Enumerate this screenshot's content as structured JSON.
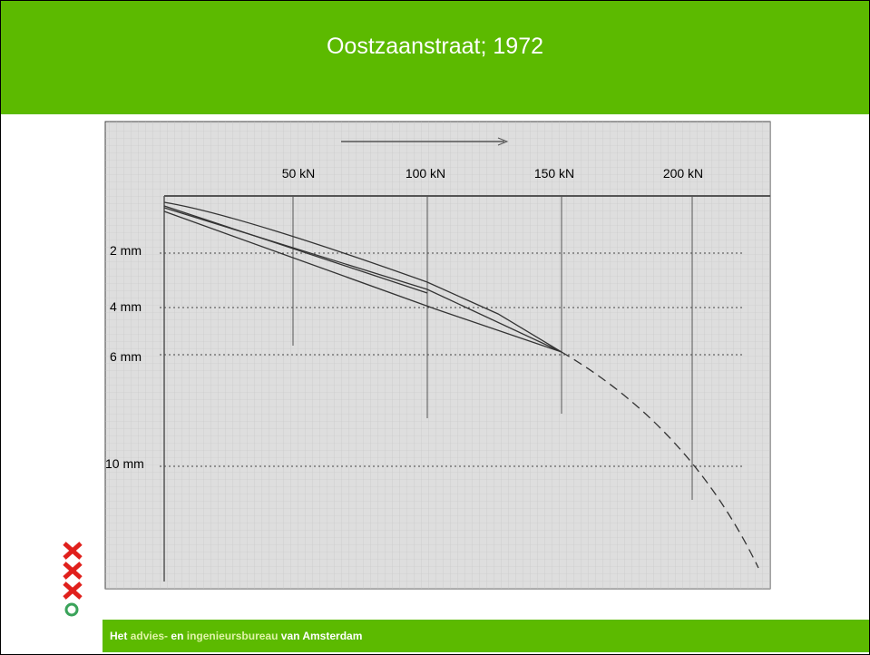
{
  "header": {
    "title": "Oostzaanstraat; 1972"
  },
  "figure": {
    "load_labels": [
      "50 kN",
      "100 kN",
      "150 kN",
      "200 kN"
    ],
    "settlement_labels": [
      "2 mm",
      "4 mm",
      "6 mm",
      "10 mm"
    ]
  },
  "footer": {
    "parts": [
      "Het",
      "advies-",
      "en",
      "ingenieursbureau",
      "van Amsterdam"
    ]
  }
}
